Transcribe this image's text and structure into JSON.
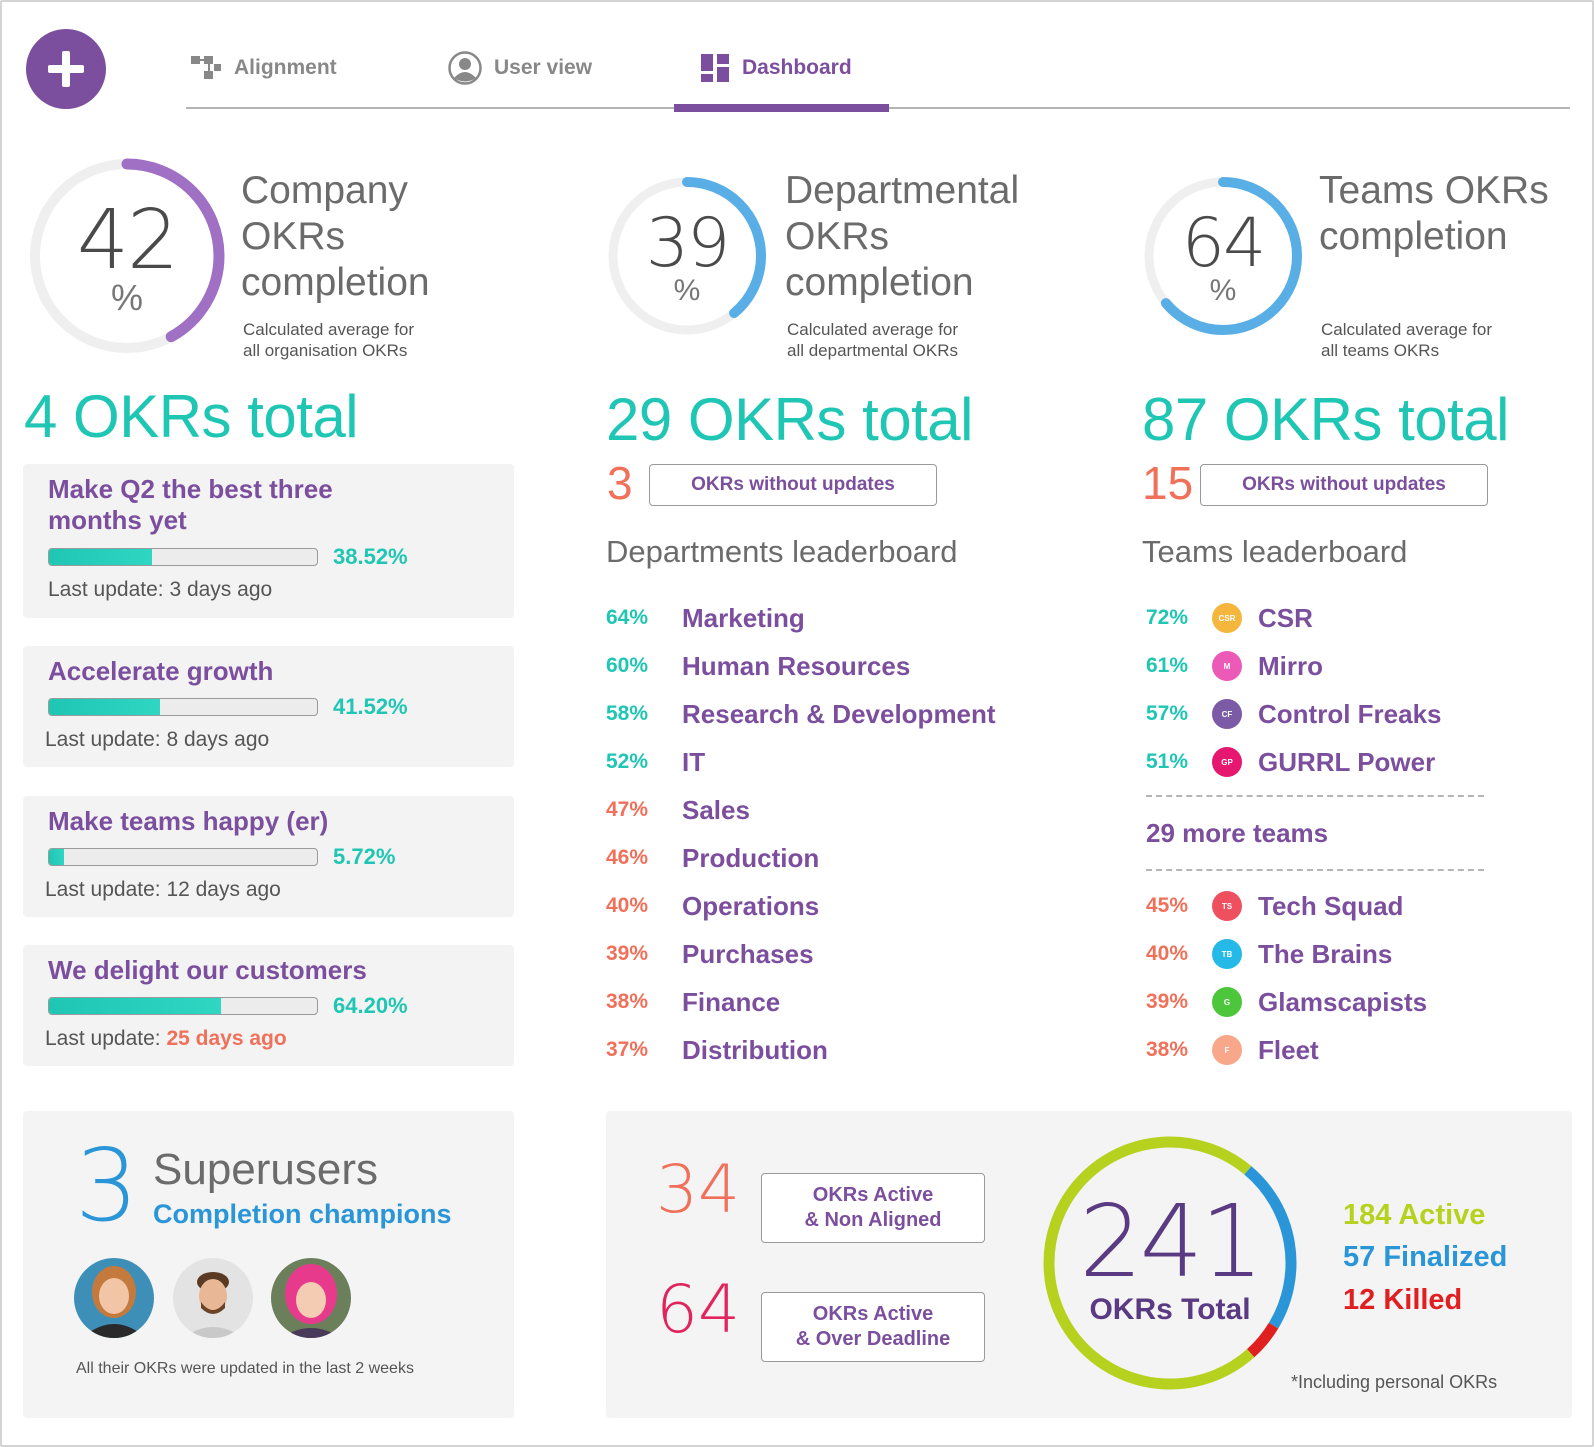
{
  "nav": {
    "add_icon": "plus-icon",
    "tabs": [
      {
        "label": "Alignment",
        "icon": "alignment-icon",
        "active": false
      },
      {
        "label": "User view",
        "icon": "user-icon",
        "active": false
      },
      {
        "label": "Dashboard",
        "icon": "dashboard-icon",
        "active": true
      }
    ]
  },
  "colors": {
    "brand_purple": "#7b4f9e",
    "teal": "#1fc6b4",
    "blue": "#2a96d8",
    "coral": "#f0705a",
    "green": "#b6d21f",
    "red": "#e02020"
  },
  "company": {
    "percent": "42",
    "percent_value": 42,
    "percent_symbol": "%",
    "title": "Company OKRs completion",
    "subtitle_1": "Calculated average for",
    "subtitle_2": "all organisation OKRs",
    "total": "4 OKRs total"
  },
  "departmental": {
    "percent": "39",
    "percent_value": 39,
    "percent_symbol": "%",
    "title": "Departmental OKRs completion",
    "subtitle_1": "Calculated average for",
    "subtitle_2": "all departmental OKRs",
    "total": "29 OKRs total",
    "without_updates_count": "3",
    "without_updates_label": "OKRs without updates"
  },
  "teams": {
    "percent": "64",
    "percent_value": 64,
    "percent_symbol": "%",
    "title": "Teams OKRs completion",
    "subtitle_1": "Calculated average for",
    "subtitle_2": "all teams OKRs",
    "total": "87 OKRs total",
    "without_updates_count": "15",
    "without_updates_label": "OKRs without updates"
  },
  "okrs": [
    {
      "title": "Make Q2 the best three months yet",
      "progress": "38.52%",
      "progress_value": 38.52,
      "update_prefix": "Last update: ",
      "update_age": "3 days ago",
      "overdue": false
    },
    {
      "title": "Accelerate growth",
      "progress": "41.52%",
      "progress_value": 41.52,
      "update_prefix": "Last update: ",
      "update_age": "8 days ago",
      "overdue": false
    },
    {
      "title": "Make teams happy (er)",
      "progress": "5.72%",
      "progress_value": 5.72,
      "update_prefix": "Last update: ",
      "update_age": "12 days ago",
      "overdue": false
    },
    {
      "title": "We delight our customers",
      "progress": "64.20%",
      "progress_value": 64.2,
      "update_prefix": "Last update: ",
      "update_age": "25 days ago",
      "overdue": true
    }
  ],
  "departments_leaderboard": {
    "title": "Departments leaderboard",
    "rows": [
      {
        "pct": "64%",
        "name": "Marketing",
        "good": true
      },
      {
        "pct": "60%",
        "name": "Human Resources",
        "good": true
      },
      {
        "pct": "58%",
        "name": "Research & Development",
        "good": true
      },
      {
        "pct": "52%",
        "name": "IT",
        "good": true
      },
      {
        "pct": "47%",
        "name": "Sales",
        "good": false
      },
      {
        "pct": "46%",
        "name": "Production",
        "good": false
      },
      {
        "pct": "40%",
        "name": "Operations",
        "good": false
      },
      {
        "pct": "39%",
        "name": "Purchases",
        "good": false
      },
      {
        "pct": "38%",
        "name": "Finance",
        "good": false
      },
      {
        "pct": "37%",
        "name": "Distribution",
        "good": false
      }
    ]
  },
  "teams_leaderboard": {
    "title": "Teams leaderboard",
    "top": [
      {
        "pct": "72%",
        "name": "CSR",
        "badge": "CSR",
        "color": "#f5b63d"
      },
      {
        "pct": "61%",
        "name": "Mirro",
        "badge": "M",
        "color": "#ec5ab8"
      },
      {
        "pct": "57%",
        "name": "Control Freaks",
        "badge": "CF",
        "color": "#7b5aa6"
      },
      {
        "pct": "51%",
        "name": "GURRL Power",
        "badge": "GP",
        "color": "#e5176f"
      }
    ],
    "more": "29 more teams",
    "bottom": [
      {
        "pct": "45%",
        "name": "Tech Squad",
        "badge": "TS",
        "color": "#ef5060"
      },
      {
        "pct": "40%",
        "name": "The Brains",
        "badge": "TB",
        "color": "#25b9e8"
      },
      {
        "pct": "39%",
        "name": "Glamscapists",
        "badge": "G",
        "color": "#4cc63a"
      },
      {
        "pct": "38%",
        "name": "Fleet",
        "badge": "F",
        "color": "#f9a78a"
      }
    ]
  },
  "superusers": {
    "count": "3",
    "title": "Superusers",
    "subtitle": "Completion champions",
    "note": "All their OKRs were updated in the last 2 weeks"
  },
  "totals": {
    "non_aligned_count": "34",
    "non_aligned_label_1": "OKRs Active",
    "non_aligned_label_2": "& Non Aligned",
    "over_deadline_count": "64",
    "over_deadline_label_1": "OKRs Active",
    "over_deadline_label_2": "& Over Deadline",
    "total": "241",
    "total_label": "OKRs Total",
    "active_value": 184,
    "finalized_value": 57,
    "killed_value": 12,
    "active": "184 Active",
    "finalized": "57 Finalized",
    "killed": "12 Killed",
    "note": "*Including personal OKRs"
  }
}
